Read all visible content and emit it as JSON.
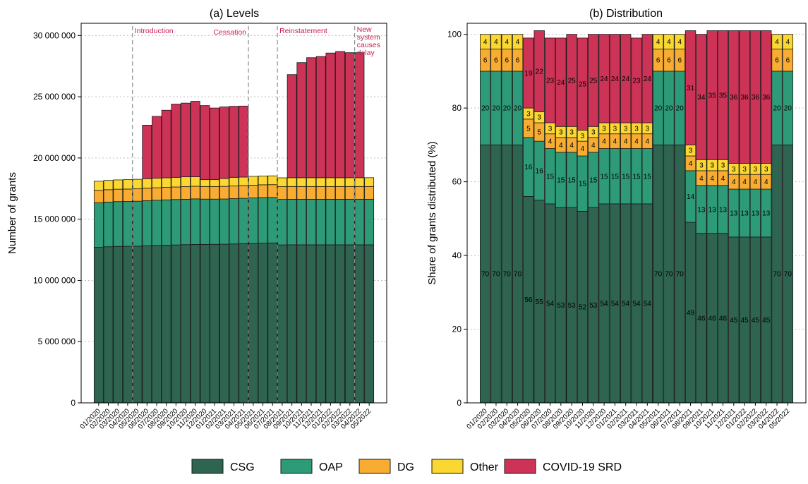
{
  "colors": {
    "CSG": "#2e6450",
    "OAP": "#2e9b78",
    "DG": "#f8ad32",
    "Other": "#fbd732",
    "COVID-19 SRD": "#cc3357",
    "event_label": "#c8214f",
    "grid": "#bfbfbf",
    "event_line": "#8c8c8c"
  },
  "legend": {
    "position": "bottom-center",
    "items": [
      "CSG",
      "OAP",
      "DG",
      "Other",
      "COVID-19 SRD"
    ]
  },
  "chart_data": [
    {
      "type": "bar",
      "stacked": true,
      "title": "(a) Levels",
      "xlabel": "",
      "ylabel": "Number of grants",
      "ylim": [
        0,
        31000000
      ],
      "yticks": [
        0,
        5000000,
        10000000,
        15000000,
        20000000,
        25000000,
        30000000
      ],
      "ytick_labels": [
        "0",
        "5 000 000",
        "10 000 000",
        "15 000 000",
        "20 000 000",
        "25 000 000",
        "30 000 000"
      ],
      "grid": true,
      "categories": [
        "01/2020",
        "02/2020",
        "03/2020",
        "04/2020",
        "05/2020",
        "06/2020",
        "07/2020",
        "08/2020",
        "09/2020",
        "10/2020",
        "11/2020",
        "12/2020",
        "01/2021",
        "02/2021",
        "03/2021",
        "04/2021",
        "05/2021",
        "06/2021",
        "07/2021",
        "08/2021",
        "09/2021",
        "10/2021",
        "11/2021",
        "12/2021",
        "01/2022",
        "02/2022",
        "03/2022",
        "04/2022",
        "05/2022"
      ],
      "series": [
        {
          "name": "CSG",
          "values": [
            12700000,
            12750000,
            12780000,
            12790000,
            12800000,
            12830000,
            12860000,
            12880000,
            12900000,
            12920000,
            12940000,
            12940000,
            12950000,
            12960000,
            12980000,
            13000000,
            13020000,
            13040000,
            13060000,
            12900000,
            12910000,
            12910000,
            12910000,
            12910000,
            12910000,
            12910000,
            12910000,
            12910000,
            12910000
          ]
        },
        {
          "name": "OAP",
          "values": [
            3640000,
            3650000,
            3660000,
            3660000,
            3670000,
            3680000,
            3690000,
            3700000,
            3710000,
            3710000,
            3720000,
            3700000,
            3690000,
            3690000,
            3700000,
            3710000,
            3720000,
            3730000,
            3720000,
            3720000,
            3720000,
            3720000,
            3720000,
            3720000,
            3720000,
            3720000,
            3720000,
            3720000,
            3720000
          ]
        },
        {
          "name": "DG",
          "values": [
            1010000,
            1010000,
            1010000,
            1010000,
            1010000,
            1020000,
            1020000,
            1020000,
            1020000,
            1030000,
            1030000,
            1030000,
            1030000,
            1030000,
            1030000,
            1040000,
            1040000,
            1040000,
            1040000,
            1040000,
            1040000,
            1040000,
            1040000,
            1040000,
            1040000,
            1040000,
            1040000,
            1040000,
            1040000
          ]
        },
        {
          "name": "Other",
          "values": [
            750000,
            760000,
            760000,
            770000,
            780000,
            780000,
            780000,
            780000,
            790000,
            800000,
            780000,
            560000,
            560000,
            640000,
            710000,
            690000,
            720000,
            720000,
            720000,
            720000,
            720000,
            720000,
            720000,
            720000,
            720000,
            720000,
            720000,
            720000,
            720000
          ]
        },
        {
          "name": "COVID-19 SRD",
          "values": [
            0,
            0,
            0,
            0,
            0,
            4370000,
            5050000,
            5520000,
            5980000,
            6020000,
            6160000,
            6050000,
            5850000,
            5850000,
            5800000,
            5800000,
            0,
            0,
            0,
            0,
            8420000,
            9400000,
            9800000,
            9900000,
            10180000,
            10310000,
            10210000,
            10210000,
            0
          ]
        }
      ],
      "events": [
        {
          "label": "Introduction",
          "category": "05/2020"
        },
        {
          "label": "Cessation",
          "category": "05/2021"
        },
        {
          "label": "Reinstatement",
          "category": "08/2021"
        },
        {
          "label": "New system causes delay",
          "category": "04/2022"
        }
      ]
    },
    {
      "type": "bar",
      "stacked": true,
      "title": "(b) Distribution",
      "xlabel": "",
      "ylabel": "Share of grants distributed (%)",
      "ylim": [
        0,
        103
      ],
      "yticks": [
        0,
        20,
        40,
        60,
        80,
        100
      ],
      "ytick_labels": [
        "0",
        "20",
        "40",
        "60",
        "80",
        "100"
      ],
      "grid": true,
      "data_labels": true,
      "categories": [
        "01/2020",
        "02/2020",
        "03/2020",
        "04/2020",
        "05/2020",
        "06/2020",
        "07/2020",
        "08/2020",
        "09/2020",
        "10/2020",
        "11/2020",
        "12/2020",
        "01/2021",
        "02/2021",
        "03/2021",
        "04/2021",
        "05/2021",
        "06/2021",
        "07/2021",
        "08/2021",
        "09/2021",
        "10/2021",
        "11/2021",
        "12/2021",
        "01/2022",
        "02/2022",
        "03/2022",
        "04/2022",
        "05/2022"
      ],
      "series": [
        {
          "name": "CSG",
          "values": [
            70,
            70,
            70,
            70,
            56,
            55,
            54,
            53,
            53,
            52,
            53,
            54,
            54,
            54,
            54,
            54,
            70,
            70,
            70,
            49,
            46,
            46,
            46,
            45,
            45,
            45,
            45,
            70,
            70
          ]
        },
        {
          "name": "OAP",
          "values": [
            20,
            20,
            20,
            20,
            16,
            16,
            15,
            15,
            15,
            15,
            15,
            15,
            15,
            15,
            15,
            15,
            20,
            20,
            20,
            14,
            13,
            13,
            13,
            13,
            13,
            13,
            13,
            20,
            20
          ]
        },
        {
          "name": "DG",
          "values": [
            6,
            6,
            6,
            6,
            5,
            5,
            4,
            4,
            4,
            4,
            4,
            4,
            4,
            4,
            4,
            4,
            6,
            6,
            6,
            4,
            4,
            4,
            4,
            4,
            4,
            4,
            4,
            6,
            6
          ]
        },
        {
          "name": "Other",
          "values": [
            4,
            4,
            4,
            4,
            3,
            3,
            3,
            3,
            3,
            3,
            3,
            3,
            3,
            3,
            3,
            3,
            4,
            4,
            4,
            3,
            3,
            3,
            3,
            3,
            3,
            3,
            3,
            4,
            4
          ]
        },
        {
          "name": "COVID-19 SRD",
          "values": [
            0,
            0,
            0,
            0,
            19,
            22,
            23,
            24,
            25,
            25,
            25,
            24,
            24,
            24,
            23,
            24,
            0,
            0,
            0,
            31,
            34,
            35,
            35,
            36,
            36,
            36,
            36,
            0,
            0
          ]
        }
      ]
    }
  ]
}
